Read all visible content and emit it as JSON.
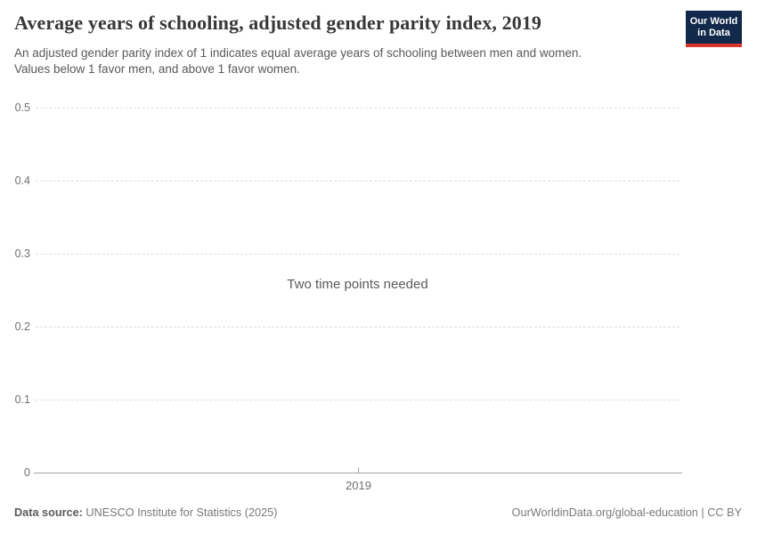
{
  "chart_data": {
    "type": "line",
    "title": "Average years of schooling, adjusted gender parity index, 2019",
    "subtitle": [
      "An adjusted gender parity index of 1 indicates equal average years of schooling between men and women.",
      "Values below 1 favor men, and above 1 favor women."
    ],
    "series": [],
    "empty_state_message": "Two time points needed",
    "x_ticks": [
      "2019"
    ],
    "y_ticks": [
      "0",
      "0.1",
      "0.2",
      "0.3",
      "0.4",
      "0.5"
    ],
    "ylim": [
      0,
      0.5
    ],
    "grid": "dashed horizontal gridlines, solid zero baseline",
    "legend_position": "none"
  },
  "logo": {
    "line1": "Our World",
    "line2": "in Data",
    "bg_color": "#12294b",
    "bar_color": "#d8352e"
  },
  "footer": {
    "source_label": "Data source:",
    "source_text": " UNESCO Institute for Statistics (2025)",
    "rights": "OurWorldinData.org/global-education | CC BY"
  }
}
